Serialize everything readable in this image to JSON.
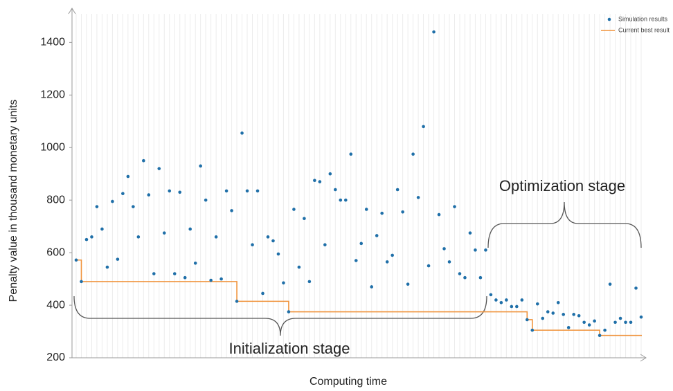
{
  "chart_data": {
    "type": "scatter_step",
    "y_label": "Penalty value in thousand monetary units",
    "x_label": "Computing time",
    "annotations": [
      "Initialization stage",
      "Optimization stage"
    ],
    "legend": "upper right",
    "ylim": [
      200,
      1530
    ],
    "yticks": [
      200,
      400,
      600,
      800,
      1000,
      1200,
      1400
    ],
    "series": [
      {
        "name": "Simulation results",
        "color": "#1f6fa8",
        "values": [
          572,
          490,
          650,
          660,
          775,
          690,
          545,
          795,
          575,
          825,
          890,
          775,
          660,
          950,
          820,
          520,
          920,
          675,
          835,
          520,
          830,
          505,
          690,
          560,
          930,
          800,
          495,
          660,
          500,
          835,
          760,
          415,
          1055,
          835,
          630,
          835,
          445,
          660,
          645,
          595,
          485,
          375,
          765,
          545,
          730,
          490,
          875,
          870,
          630,
          900,
          840,
          800,
          800,
          975,
          570,
          635,
          765,
          470,
          665,
          750,
          565,
          590,
          840,
          755,
          480,
          975,
          810,
          1080,
          550,
          1440,
          745,
          615,
          565,
          775,
          520,
          505,
          675,
          610,
          505,
          610,
          440,
          420,
          410,
          420,
          395,
          395,
          420,
          345,
          305,
          405,
          350,
          375,
          370,
          410,
          365,
          315,
          365,
          360,
          335,
          325,
          340,
          285,
          305,
          480,
          335,
          350,
          335,
          335,
          465,
          355
        ]
      },
      {
        "name": "Current best result",
        "color": "#f0923a",
        "values": [
          572,
          490,
          490,
          490,
          490,
          490,
          490,
          490,
          490,
          490,
          490,
          490,
          490,
          490,
          490,
          490,
          490,
          490,
          490,
          490,
          490,
          490,
          490,
          490,
          490,
          490,
          490,
          490,
          490,
          490,
          490,
          415,
          415,
          415,
          415,
          415,
          415,
          415,
          415,
          415,
          415,
          375,
          375,
          375,
          375,
          375,
          375,
          375,
          375,
          375,
          375,
          375,
          375,
          375,
          375,
          375,
          375,
          375,
          375,
          375,
          375,
          375,
          375,
          375,
          375,
          375,
          375,
          375,
          375,
          375,
          375,
          375,
          375,
          375,
          375,
          375,
          375,
          375,
          375,
          375,
          375,
          375,
          375,
          375,
          375,
          375,
          375,
          345,
          305,
          305,
          305,
          305,
          305,
          305,
          305,
          305,
          305,
          305,
          305,
          305,
          305,
          285,
          285,
          285,
          285,
          285,
          285,
          285,
          285,
          285
        ]
      }
    ]
  }
}
